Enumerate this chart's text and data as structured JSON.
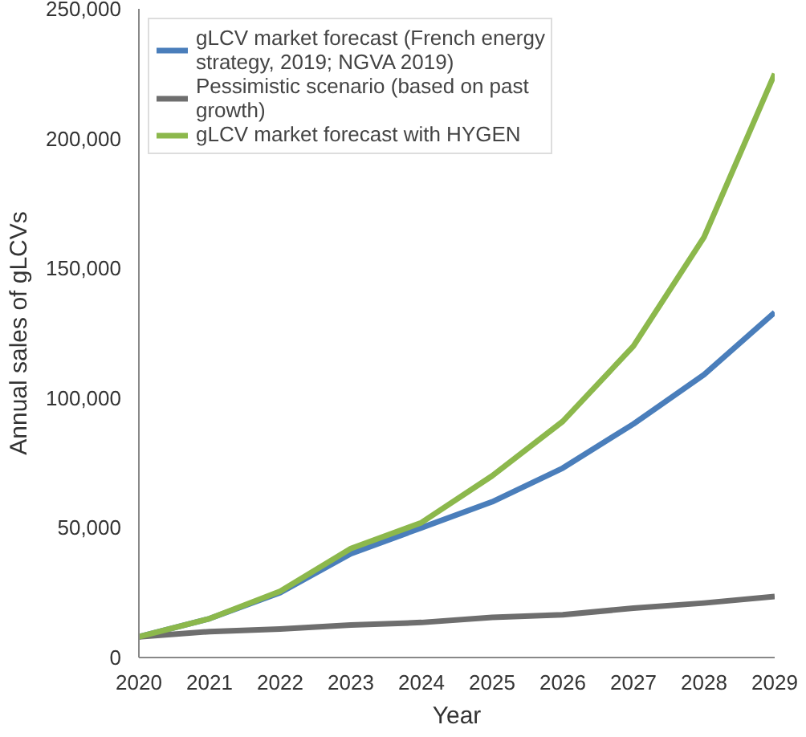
{
  "chart_data": {
    "type": "line",
    "xlabel": "Year",
    "ylabel": "Annual sales of gLCVs",
    "x": [
      2020,
      2021,
      2022,
      2023,
      2024,
      2025,
      2026,
      2027,
      2028,
      2029
    ],
    "xlim": [
      2020,
      2029
    ],
    "xticks": [
      2020,
      2021,
      2022,
      2023,
      2024,
      2025,
      2026,
      2027,
      2028,
      2029
    ],
    "ylim": [
      0,
      250000
    ],
    "yticks": [
      {
        "value": 0,
        "label": "0"
      },
      {
        "value": 50000,
        "label": "50,000"
      },
      {
        "value": 100000,
        "label": "100,000"
      },
      {
        "value": 150000,
        "label": "150,000"
      },
      {
        "value": 200000,
        "label": "200,000"
      },
      {
        "value": 250000,
        "label": "250,000"
      }
    ],
    "series": [
      {
        "name": "gLCV market forecast (French energy strategy, 2019; NGVA 2019)",
        "color": "#4a7ebb",
        "values": [
          8000,
          15000,
          25000,
          40000,
          50000,
          60000,
          73000,
          90000,
          109000,
          133000
        ]
      },
      {
        "name": "Pessimistic scenario (based on past growth)",
        "color": "#6e6e6e",
        "values": [
          8000,
          10000,
          11000,
          12500,
          13500,
          15500,
          16500,
          19000,
          21000,
          23500
        ]
      },
      {
        "name": "gLCV market forecast with HYGEN",
        "color": "#8cb84c",
        "values": [
          8000,
          15000,
          25500,
          42000,
          52000,
          70000,
          91000,
          120000,
          162000,
          225000
        ]
      }
    ],
    "legend": "top left",
    "grid": false,
    "marker": "none",
    "line_style": "solid"
  }
}
